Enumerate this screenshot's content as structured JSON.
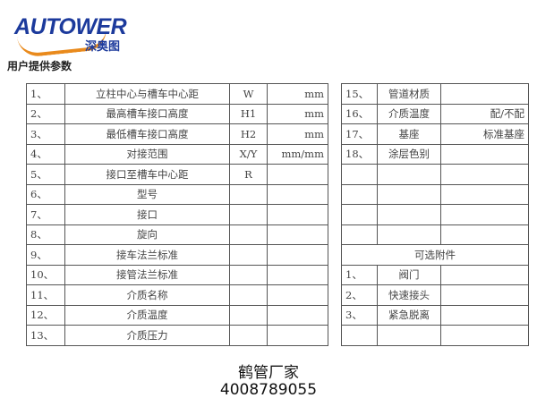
{
  "logo": {
    "brand": "AUTOWER",
    "cn": "深奥图"
  },
  "section_title": "用户提供参数",
  "left_rows": [
    [
      "1、",
      "立柱中心与槽车中心距",
      "W",
      "mm"
    ],
    [
      "2、",
      "最高槽车接口高度",
      "H1",
      "mm"
    ],
    [
      "3、",
      "最低槽车接口高度",
      "H2",
      "mm"
    ],
    [
      "4、",
      "对接范围",
      "X/Y",
      "mm/mm"
    ],
    [
      "5、",
      "接口至槽车中心距",
      "R",
      ""
    ],
    [
      "6、",
      "型号",
      "",
      ""
    ],
    [
      "7、",
      "接口",
      "",
      ""
    ],
    [
      "8、",
      "旋向",
      "",
      ""
    ],
    [
      "9、",
      "接车法兰标准",
      "",
      ""
    ],
    [
      "10、",
      "接管法兰标准",
      "",
      ""
    ],
    [
      "11、",
      "介质名称",
      "",
      ""
    ],
    [
      "12、",
      "介质温度",
      "",
      ""
    ],
    [
      "13、",
      "介质压力",
      "",
      ""
    ]
  ],
  "right_rows": [
    [
      "15、",
      "管道材质",
      ""
    ],
    [
      "16、",
      "介质温度",
      "配/不配"
    ],
    [
      "17、",
      "基座",
      "标准基座"
    ],
    [
      "18、",
      "涂层色别",
      ""
    ],
    [
      "",
      "",
      ""
    ],
    [
      "",
      "",
      ""
    ],
    [
      "",
      "",
      ""
    ],
    [
      "",
      "",
      ""
    ]
  ],
  "optional_header": "可选附件",
  "optional_rows": [
    [
      "1、",
      "阀门",
      ""
    ],
    [
      "2、",
      "快速接头",
      ""
    ],
    [
      "3、",
      "紧急脱离",
      ""
    ],
    [
      "",
      "",
      ""
    ]
  ],
  "footer": {
    "line1": "鹤管厂家",
    "line2": "4008789055"
  }
}
